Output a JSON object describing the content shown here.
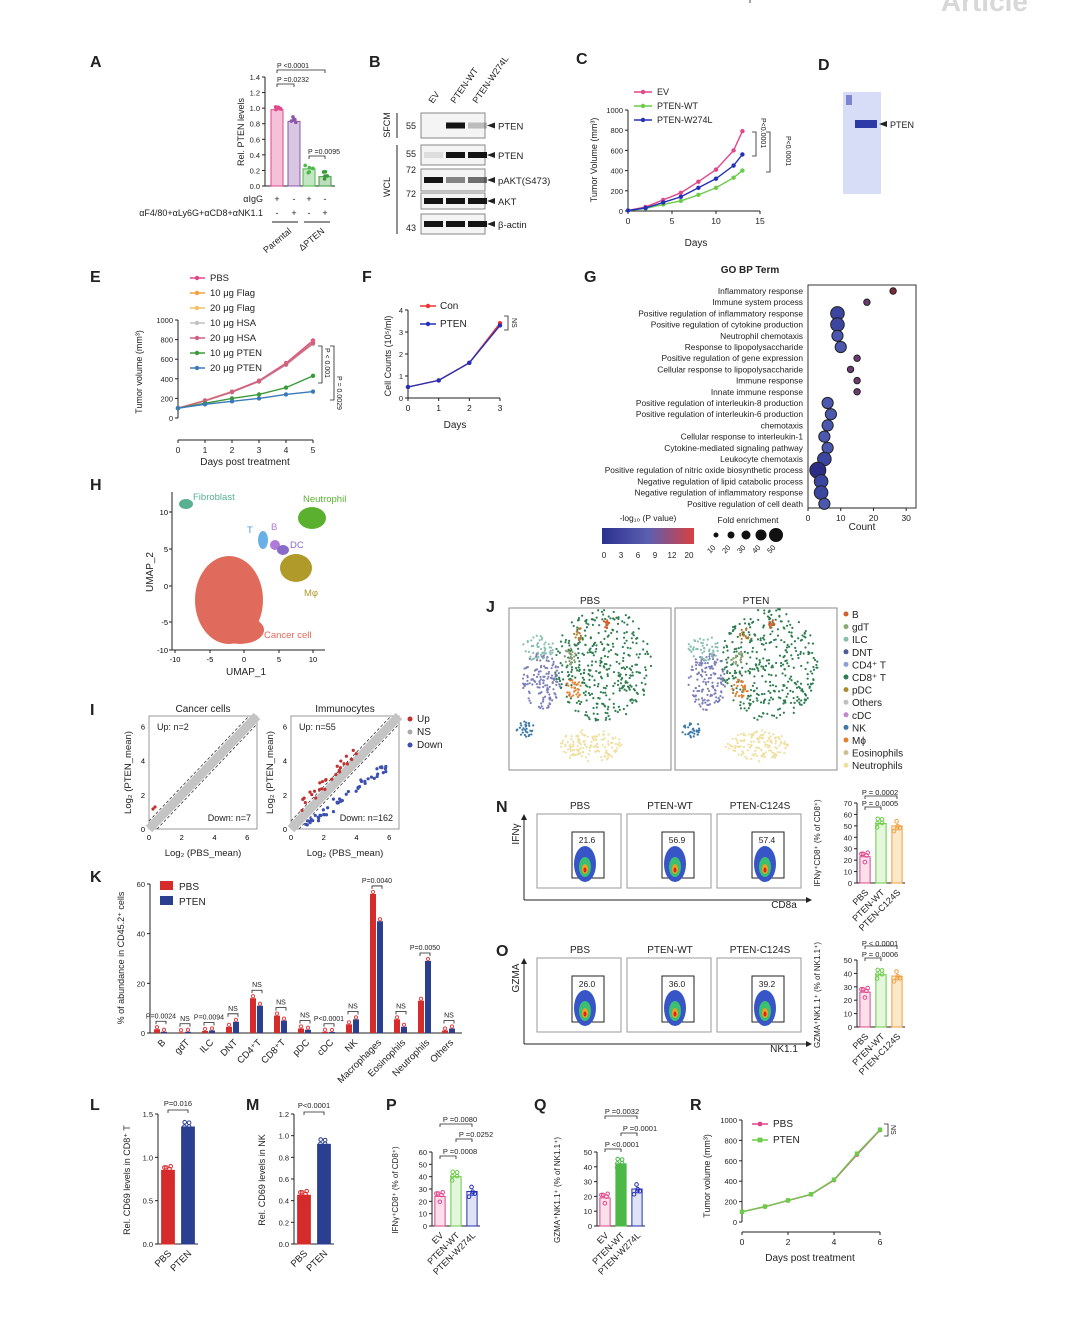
{
  "header": {
    "journal_word": "Article"
  },
  "panels": {
    "A": {
      "letter": "A",
      "ylabel": "Rel. PTEN levels",
      "yticks": [
        "0.0",
        "0.2",
        "0.4",
        "0.6",
        "0.8",
        "1.0",
        "1.2",
        "1.4"
      ],
      "pvals": [
        "P <0.0001",
        "P =0.0232",
        "P =0.0095"
      ],
      "row1": "αIgG",
      "row2": "αF4/80+αLy6G+αCD8+αNK1.1",
      "row1_signs": [
        "+",
        "-",
        "+",
        "-"
      ],
      "row2_signs": [
        "-",
        "+",
        "-",
        "+"
      ],
      "groups": [
        "Parental",
        "ΔPTEN"
      ]
    },
    "B": {
      "letter": "B",
      "lanes": [
        "EV",
        "PTEN-WT",
        "PTEN-W274L"
      ],
      "fraction1": "SFCM",
      "fraction2": "WCL",
      "mw": [
        "55",
        "55",
        "72",
        "72",
        "43"
      ],
      "bands": [
        "PTEN",
        "PTEN",
        "pAKT(S473)",
        "AKT",
        "β-actin"
      ]
    },
    "C": {
      "letter": "C",
      "ylabel": "Tumor Volume (mm³)",
      "xlabel": "Days",
      "legend": [
        "EV",
        "PTEN-WT",
        "PTEN-W274L"
      ],
      "pvals": [
        "P<0.0001",
        "P<0.0001"
      ]
    },
    "D": {
      "letter": "D",
      "band": "PTEN"
    },
    "E": {
      "letter": "E",
      "ylabel": "Tumor volume (mm³)",
      "xlabel": "Days post treatment",
      "legend": [
        "PBS",
        "10 μg Flag",
        "20 μg Flag",
        "10 μg HSA",
        "20 μg HSA",
        "10 μg PTEN",
        "20 μg PTEN"
      ],
      "pvals": [
        "P < 0.001",
        "P = 0.0029"
      ]
    },
    "F": {
      "letter": "F",
      "ylabel": "Cell Counts (10⁵/ml)",
      "xlabel": "Days",
      "legend": [
        "Con",
        "PTEN"
      ],
      "ns": "NS"
    },
    "G": {
      "letter": "G",
      "title": "GO BP Term",
      "terms": [
        "Inflammatory response",
        "Immune system process",
        "Positive regulation of inflammatory response",
        "Positive regulation of cytokine production",
        "Neutrophil chemotaxis",
        "Response to lipopolysaccharide",
        "Positive regulation of gene expression",
        "Cellular response to lipopolysaccharide",
        "Immune response",
        "Innate immune response",
        "Positive regulation of interleukin-8 production",
        "Positive regulation of interleukin-6 production",
        "chemotaxis",
        "Cellular response to interleukin-1",
        "Cytokine-mediated signaling pathway",
        "Leukocyte chemotaxis",
        "Positive regulation of nitric oxide biosynthetic process",
        "Negative regulation of lipid catabolic process",
        "Negative regulation of inflammatory response",
        "Positive regulation of cell death"
      ],
      "xlabel": "Count",
      "color_title": "-log₁₀ (P value)",
      "color_ticks": [
        "0",
        "3",
        "6",
        "9",
        "12",
        "20"
      ],
      "size_title": "Fold enrichment",
      "size_ticks": [
        "10",
        "20",
        "30",
        "40",
        "50"
      ]
    },
    "H": {
      "letter": "H",
      "xlabel": "UMAP_1",
      "ylabel": "UMAP_2",
      "clusters": [
        "Fibroblast",
        "Neutrophil",
        "T",
        "B",
        "DC",
        "Mφ",
        "Cancer cell"
      ]
    },
    "I": {
      "letter": "I",
      "title1": "Cancer cells",
      "title2": "Immunocytes",
      "ylabel": "Log₂ (PTEN_mean)",
      "xlabel": "Log₂ (PBS_mean)",
      "up1": "Up: n=2",
      "down1": "Down: n=7",
      "up2": "Up: n=55",
      "down2": "Down: n=162",
      "legend": [
        "Up",
        "NS",
        "Down"
      ]
    },
    "J": {
      "letter": "J",
      "title1": "PBS",
      "title2": "PTEN",
      "legend": [
        "B",
        "gdT",
        "ILC",
        "DNT",
        "CD4⁺ T",
        "CD8⁺ T",
        "pDC",
        "Others",
        "cDC",
        "NK",
        "Mϕ",
        "Eosinophils",
        "Neutrophils"
      ]
    },
    "K": {
      "letter": "K",
      "ylabel": "% of abundance in CD45.2⁺ cells",
      "legend": [
        "PBS",
        "PTEN"
      ],
      "categories": [
        "B",
        "gdT",
        "ILC",
        "DNT",
        "CD4⁺T",
        "CD8⁺T",
        "pDC",
        "cDC",
        "NK",
        "Macrophages",
        "Eosinophils",
        "Neutrophils",
        "Others"
      ],
      "pvals": [
        "P=0.0024",
        "NS",
        "P=0.0094",
        "NS",
        "NS",
        "NS",
        "NS",
        "P<0.0001",
        "NS",
        "P=0.0040",
        "NS",
        "P=0.0050",
        "NS"
      ]
    },
    "L": {
      "letter": "L",
      "ylabel": "Rel. CD69 levels in CD8⁺ T",
      "groups": [
        "PBS",
        "PTEN"
      ],
      "pval": "P=0.016"
    },
    "M": {
      "letter": "M",
      "ylabel": "Rel. CD69 levels in NK",
      "groups": [
        "PBS",
        "PTEN"
      ],
      "pval": "P<0.0001"
    },
    "N": {
      "letter": "N",
      "titles": [
        "PBS",
        "PTEN-WT",
        "PTEN-C124S"
      ],
      "gates": [
        "21.6",
        "56.9",
        "57.4"
      ],
      "yaxis": "IFNγ",
      "xaxis": "CD8a",
      "bar_ylabel": "IFNγ⁺CD8⁺ (% of CD8⁺)",
      "groups": [
        "PBS",
        "PTEN-WT",
        "PTEN-C124S"
      ],
      "pvals": [
        "P = 0.0002",
        "P = 0.0005"
      ]
    },
    "O": {
      "letter": "O",
      "titles": [
        "PBS",
        "PTEN-WT",
        "PTEN-C124S"
      ],
      "gates": [
        "26.0",
        "36.0",
        "39.2"
      ],
      "yaxis": "GZMA",
      "xaxis": "NK1.1",
      "bar_ylabel": "GZMA⁺NK1.1⁺ (% of NK1.1⁺)",
      "groups": [
        "PBS",
        "PTEN-WT",
        "PTEN-C124S"
      ],
      "pvals": [
        "P < 0.0001",
        "P = 0.0006"
      ]
    },
    "P": {
      "letter": "P",
      "ylabel": "IFNγ⁺CD8⁺ (% of CD8⁺)",
      "groups": [
        "EV",
        "PTEN-WT",
        "PTEN-W274L"
      ],
      "pvals": [
        "P =0.0080",
        "P =0.0252",
        "P =0.0008"
      ]
    },
    "Q": {
      "letter": "Q",
      "ylabel": "GZMA⁺NK1.1⁺ (% of NK1.1⁺)",
      "groups": [
        "EV",
        "PTEN-WT",
        "PTEN-W274L"
      ],
      "pvals": [
        "P =0.0032",
        "P =0.0001",
        "P <0.0001"
      ]
    },
    "R": {
      "letter": "R",
      "ylabel": "Tumor volume (mm³)",
      "xlabel": "Days post treatment",
      "legend": [
        "PBS",
        "PTEN"
      ],
      "ns": "NS"
    }
  },
  "chart_data": [
    {
      "id": "A",
      "type": "bar",
      "categories": [
        "Parental αIgG",
        "Parental depletion",
        "ΔPTEN αIgG",
        "ΔPTEN depletion"
      ],
      "values": [
        0.98,
        0.83,
        0.22,
        0.12
      ],
      "ylim": [
        0,
        1.4
      ],
      "colors": [
        "#e0468a",
        "#8a56a8",
        "#4cb848",
        "#3a9a3a"
      ]
    },
    {
      "id": "C",
      "type": "line",
      "x": [
        0,
        2,
        4,
        6,
        8,
        10,
        12,
        13
      ],
      "series": [
        {
          "name": "EV",
          "color": "#e0468a",
          "values": [
            5,
            40,
            110,
            180,
            290,
            410,
            600,
            790
          ]
        },
        {
          "name": "PTEN-WT",
          "color": "#6ccb48",
          "values": [
            5,
            25,
            65,
            100,
            160,
            230,
            330,
            400
          ]
        },
        {
          "name": "PTEN-W274L",
          "color": "#2430b8",
          "values": [
            5,
            30,
            85,
            140,
            230,
            320,
            450,
            560
          ]
        }
      ],
      "xlim": [
        0,
        15
      ],
      "ylim": [
        0,
        1000
      ]
    },
    {
      "id": "E",
      "type": "line",
      "x": [
        0,
        1,
        2,
        3,
        4,
        5
      ],
      "series": [
        {
          "name": "PBS",
          "color": "#e0468a",
          "values": [
            100,
            180,
            270,
            380,
            560,
            790
          ]
        },
        {
          "name": "10 μg Flag",
          "color": "#f2a040",
          "values": [
            100,
            175,
            265,
            375,
            550,
            770
          ]
        },
        {
          "name": "20 μg Flag",
          "color": "#f4c060",
          "values": [
            100,
            178,
            268,
            372,
            545,
            760
          ]
        },
        {
          "name": "10 μg HSA",
          "color": "#c0c0c0",
          "values": [
            100,
            172,
            262,
            370,
            540,
            755
          ]
        },
        {
          "name": "20 μg HSA",
          "color": "#d06080",
          "values": [
            100,
            176,
            266,
            376,
            548,
            765
          ]
        },
        {
          "name": "10 μg PTEN",
          "color": "#3a9a3a",
          "values": [
            100,
            150,
            200,
            240,
            310,
            430
          ]
        },
        {
          "name": "20 μg PTEN",
          "color": "#3a7ab8",
          "values": [
            100,
            140,
            170,
            200,
            240,
            270
          ]
        }
      ],
      "xlim": [
        0,
        5
      ],
      "ylim": [
        0,
        1000
      ]
    },
    {
      "id": "F",
      "type": "line",
      "x": [
        0,
        1,
        2,
        3
      ],
      "series": [
        {
          "name": "Con",
          "color": "#e33",
          "values": [
            0.5,
            0.8,
            1.6,
            3.4
          ]
        },
        {
          "name": "PTEN",
          "color": "#2430b8",
          "values": [
            0.5,
            0.8,
            1.6,
            3.3
          ]
        }
      ],
      "xlim": [
        0,
        3
      ],
      "ylim": [
        0,
        4
      ]
    },
    {
      "id": "G",
      "type": "scatter",
      "y": [
        "Inflammatory response",
        "Immune system process",
        "Positive regulation of inflammatory response",
        "Positive regulation of cytokine production",
        "Neutrophil chemotaxis",
        "Response to lipopolysaccharide",
        "Positive regulation of gene expression",
        "Cellular response to lipopolysaccharide",
        "Immune response",
        "Innate immune response",
        "Positive regulation of interleukin-8 production",
        "Positive regulation of interleukin-6 production",
        "chemotaxis",
        "Cellular response to interleukin-1",
        "Cytokine-mediated signaling pathway",
        "Leukocyte chemotaxis",
        "Positive regulation of nitric oxide biosynthetic process",
        "Negative regulation of lipid catabolic process",
        "Negative regulation of inflammatory response",
        "Positive regulation of cell death"
      ],
      "x": [
        26,
        18,
        9,
        9,
        9,
        10,
        15,
        13,
        15,
        15,
        6,
        7,
        6,
        5,
        6,
        5,
        3,
        4,
        4,
        5
      ],
      "fold": [
        10,
        10,
        40,
        40,
        30,
        30,
        10,
        10,
        10,
        10,
        30,
        30,
        30,
        30,
        30,
        40,
        50,
        40,
        40,
        30
      ],
      "xlim": [
        0,
        30
      ]
    },
    {
      "id": "K",
      "type": "bar",
      "categories": [
        "B",
        "gdT",
        "ILC",
        "DNT",
        "CD4⁺T",
        "CD8⁺T",
        "pDC",
        "cDC",
        "NK",
        "Macrophages",
        "Eosinophils",
        "Neutrophils",
        "Others"
      ],
      "series": [
        {
          "name": "PBS",
          "color": "#d62b2b",
          "values": [
            1.5,
            0.3,
            0.8,
            2.5,
            14,
            7,
            1.8,
            0.5,
            3.5,
            56,
            5.5,
            13,
            1
          ]
        },
        {
          "name": "PTEN",
          "color": "#2a3f8f",
          "values": [
            0.5,
            0.5,
            1.0,
            4.5,
            11,
            5,
            1.3,
            0.4,
            5.5,
            45,
            2.5,
            29,
            1.8
          ]
        }
      ],
      "ylim": [
        0,
        60
      ]
    },
    {
      "id": "L",
      "type": "bar",
      "categories": [
        "PBS",
        "PTEN"
      ],
      "values": [
        0.85,
        1.35
      ],
      "ylim": [
        0,
        1.5
      ]
    },
    {
      "id": "M",
      "type": "bar",
      "categories": [
        "PBS",
        "PTEN"
      ],
      "values": [
        0.45,
        0.92
      ],
      "ylim": [
        0,
        1.2
      ]
    },
    {
      "id": "N",
      "type": "bar",
      "categories": [
        "PBS",
        "PTEN-WT",
        "PTEN-C124S"
      ],
      "values": [
        23,
        52,
        50
      ],
      "ylim": [
        0,
        70
      ]
    },
    {
      "id": "O",
      "type": "bar",
      "categories": [
        "PBS",
        "PTEN-WT",
        "PTEN-C124S"
      ],
      "values": [
        26,
        39,
        38
      ],
      "ylim": [
        0,
        50
      ]
    },
    {
      "id": "P",
      "type": "bar",
      "categories": [
        "EV",
        "PTEN-WT",
        "PTEN-W274L"
      ],
      "values": [
        24,
        40,
        28
      ],
      "ylim": [
        0,
        60
      ]
    },
    {
      "id": "Q",
      "type": "bar",
      "categories": [
        "EV",
        "PTEN-WT",
        "PTEN-W274L"
      ],
      "values": [
        19,
        42,
        25
      ],
      "ylim": [
        0,
        50
      ]
    },
    {
      "id": "R",
      "type": "line",
      "x": [
        0,
        1,
        2,
        3,
        4,
        5,
        6
      ],
      "series": [
        {
          "name": "PBS",
          "color": "#e0468a",
          "values": [
            100,
            150,
            210,
            270,
            410,
            660,
            900
          ]
        },
        {
          "name": "PTEN",
          "color": "#6ccb48",
          "values": [
            100,
            152,
            212,
            272,
            415,
            670,
            905
          ]
        }
      ],
      "xlim": [
        0,
        6
      ],
      "ylim": [
        0,
        1000
      ]
    }
  ]
}
